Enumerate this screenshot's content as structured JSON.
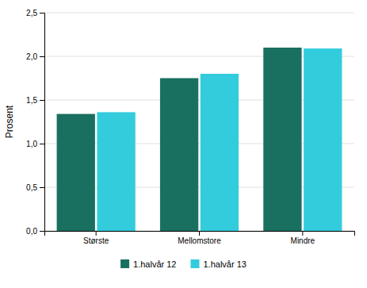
{
  "chart_data": {
    "type": "bar",
    "categories": [
      "Største",
      "Mellomstore",
      "Mindre"
    ],
    "series": [
      {
        "name": "1.halvår 12",
        "color": "#1a7060",
        "values": [
          1.34,
          1.75,
          2.1
        ]
      },
      {
        "name": "1.halvår 13",
        "color": "#33ccdd",
        "values": [
          1.36,
          1.8,
          2.09
        ]
      }
    ],
    "ylabel": "Prosent",
    "ylim": [
      0,
      2.5
    ],
    "yticks": [
      {
        "value": 0.0,
        "label": "0,0"
      },
      {
        "value": 0.5,
        "label": "0,5"
      },
      {
        "value": 1.0,
        "label": "1,0"
      },
      {
        "value": 1.5,
        "label": "1,5"
      },
      {
        "value": 2.0,
        "label": "2,0"
      },
      {
        "value": 2.5,
        "label": "2,5"
      }
    ],
    "grid": true,
    "legend": "bottom"
  }
}
